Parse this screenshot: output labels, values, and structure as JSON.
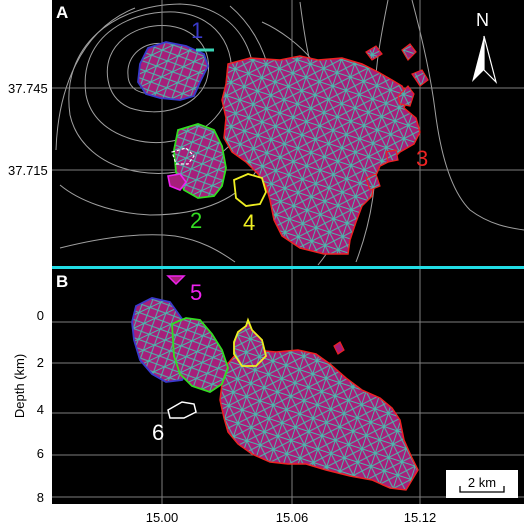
{
  "panels": {
    "a": {
      "letter": "A"
    },
    "b": {
      "letter": "B"
    }
  },
  "y_ticks_a": [
    "37.745",
    "37.715"
  ],
  "y_ticks_b": [
    "0",
    "2",
    "4",
    "6",
    "8"
  ],
  "y_axis_title_b": "Depth (km)",
  "x_ticks": [
    "15.00",
    "15.06",
    "15.12"
  ],
  "north_arrow": {
    "letter": "N",
    "icon": "north-arrow-icon"
  },
  "scale_bar": {
    "label": "2 km"
  },
  "regions": [
    {
      "number": "1",
      "color": "#3a3acc"
    },
    {
      "number": "2",
      "color": "#33dd22"
    },
    {
      "number": "3",
      "color": "#ee2222"
    },
    {
      "number": "4",
      "color": "#eeee22"
    },
    {
      "number": "5",
      "color": "#ee22ee"
    },
    {
      "number": "6",
      "color": "#ffffff"
    }
  ],
  "colors": {
    "background": "#000000",
    "grid": "#8c8c8c",
    "contour": "#bdbdbd",
    "mesh": "#39d3b4",
    "fill": "#a61f7a",
    "divider": "#22dde6"
  }
}
